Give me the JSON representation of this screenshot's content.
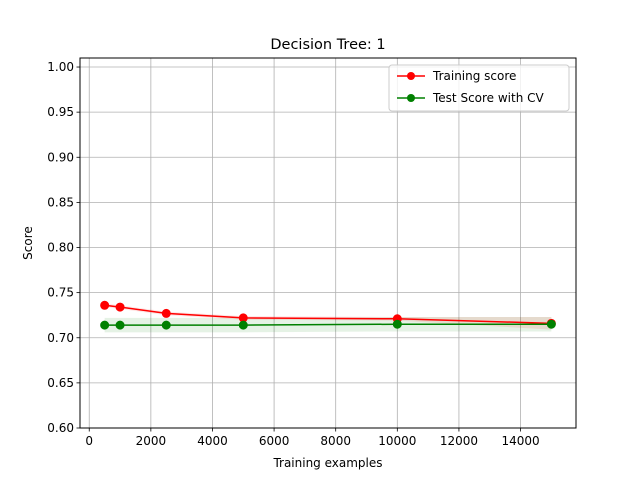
{
  "chart_data": {
    "type": "line",
    "title": "Decision Tree: 1",
    "xlabel": "Training examples",
    "ylabel": "Score",
    "xlim": [
      -300,
      15800
    ],
    "ylim": [
      0.6,
      1.01
    ],
    "xticks": [
      0,
      2000,
      4000,
      6000,
      8000,
      10000,
      12000,
      14000
    ],
    "yticks": [
      0.6,
      0.65,
      0.7,
      0.75,
      0.8,
      0.85,
      0.9,
      0.95,
      1.0
    ],
    "grid": true,
    "legend_position": "top-right",
    "x": [
      500,
      1000,
      2500,
      5000,
      10000,
      15000
    ],
    "series": [
      {
        "name": "Training score",
        "color": "#ff0000",
        "band_color": "#ff0000",
        "values": [
          0.736,
          0.734,
          0.727,
          0.722,
          0.721,
          0.716
        ],
        "band_low": [
          0.734,
          0.732,
          0.725,
          0.72,
          0.719,
          0.709
        ],
        "band_high": [
          0.738,
          0.736,
          0.729,
          0.724,
          0.723,
          0.723
        ]
      },
      {
        "name": "Test Score with CV",
        "color": "#008000",
        "band_color": "#008000",
        "values": [
          0.714,
          0.714,
          0.714,
          0.714,
          0.715,
          0.715
        ],
        "band_low": [
          0.706,
          0.706,
          0.706,
          0.706,
          0.707,
          0.707
        ],
        "band_high": [
          0.722,
          0.722,
          0.722,
          0.722,
          0.723,
          0.723
        ]
      }
    ]
  }
}
